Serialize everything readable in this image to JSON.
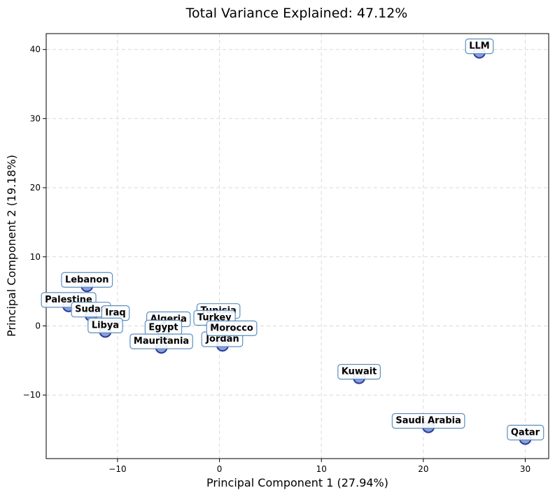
{
  "chart_data": {
    "type": "scatter",
    "title": "Total Variance Explained: 47.12%",
    "xlabel": "Principal Component 1 (27.94%)",
    "ylabel": "Principal Component 2 (19.18%)",
    "xlim": [
      -17,
      32.3
    ],
    "ylim": [
      -19.2,
      42.3
    ],
    "xticks": [
      -10,
      0,
      10,
      20,
      30
    ],
    "yticks": [
      -10,
      0,
      10,
      20,
      30,
      40
    ],
    "xtick_labels": [
      "−10",
      "0",
      "10",
      "20",
      "30"
    ],
    "ytick_labels": [
      "−10",
      "0",
      "10",
      "20",
      "30",
      "40"
    ],
    "grid": true,
    "colors": {
      "point_fill": "#8a9fd8",
      "point_edge": "#2b3a9c",
      "label_border": "#5b8fc0",
      "label_fill": "#ffffff"
    },
    "points": [
      {
        "name": "LLM",
        "x": 25.5,
        "y": 39.6
      },
      {
        "name": "Lebanon",
        "x": -13.0,
        "y": 5.8
      },
      {
        "name": "Palestine",
        "x": -14.8,
        "y": 2.9
      },
      {
        "name": "Sudan",
        "x": -12.6,
        "y": 1.5
      },
      {
        "name": "Iraq",
        "x": -10.2,
        "y": 1.0
      },
      {
        "name": "Libya",
        "x": -11.2,
        "y": -0.8
      },
      {
        "name": "Algeria",
        "x": -5.0,
        "y": 0.1
      },
      {
        "name": "Egypt",
        "x": -5.5,
        "y": -1.1
      },
      {
        "name": "Mauritania",
        "x": -5.7,
        "y": -3.1
      },
      {
        "name": "Tunisia",
        "x": -0.1,
        "y": 1.3
      },
      {
        "name": "Turkey",
        "x": -0.5,
        "y": 0.3
      },
      {
        "name": "Jordan",
        "x": 0.3,
        "y": -2.8
      },
      {
        "name": "Morocco",
        "x": 1.2,
        "y": -1.2
      },
      {
        "name": "Kuwait",
        "x": 13.7,
        "y": -7.5
      },
      {
        "name": "Saudi Arabia",
        "x": 20.5,
        "y": -14.6
      },
      {
        "name": "Qatar",
        "x": 30.0,
        "y": -16.3
      }
    ]
  }
}
